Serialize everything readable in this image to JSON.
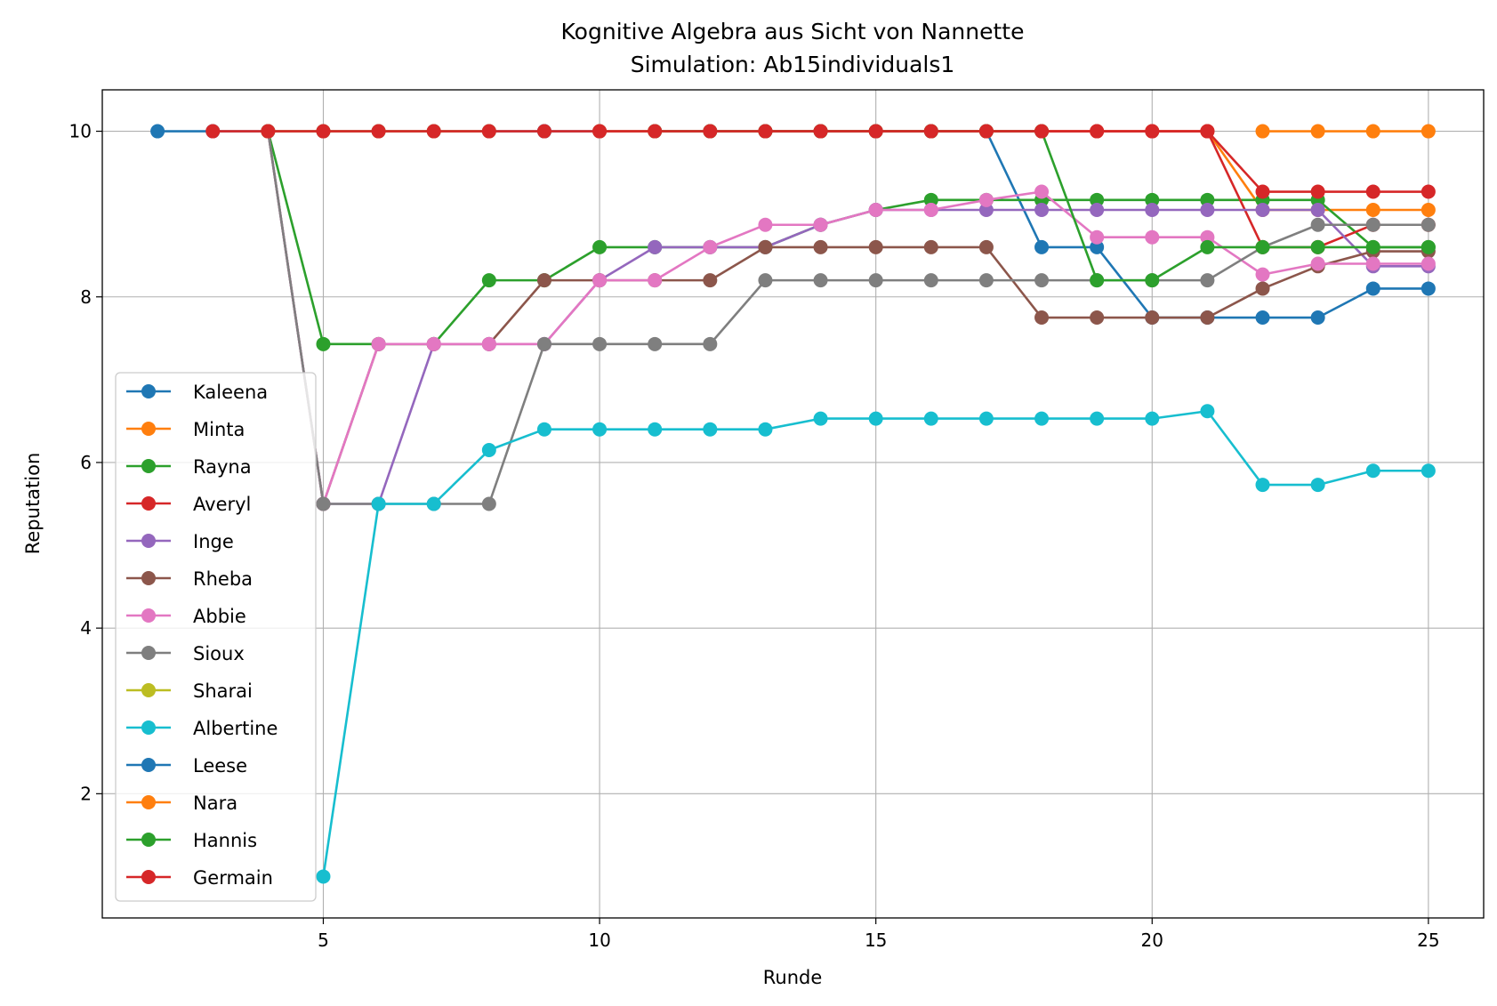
{
  "chart_data": {
    "type": "line",
    "title": "Kognitive Algebra aus Sicht von Nannette",
    "subtitle": "Simulation: Ab15individuals1",
    "xlabel": "Runde",
    "ylabel": "Reputation",
    "xlim": [
      1,
      26
    ],
    "ylim": [
      0.5,
      10.5
    ],
    "xticks": [
      5,
      10,
      15,
      20,
      25
    ],
    "yticks": [
      2,
      4,
      6,
      8,
      10
    ],
    "grid": true,
    "legend_position": "lower-left",
    "series": [
      {
        "name": "Kaleena",
        "color": "#1f77b4",
        "x": [
          2,
          3,
          4,
          5,
          6,
          7,
          8,
          9,
          10,
          11,
          12,
          13,
          14,
          15,
          16,
          17,
          18,
          19,
          20,
          21,
          22,
          23,
          24,
          25
        ],
        "y": [
          10,
          10,
          10,
          10,
          10,
          10,
          10,
          10,
          10,
          10,
          10,
          10,
          10,
          10,
          10,
          10,
          8.6,
          8.6,
          7.75,
          7.75,
          7.75,
          7.75,
          8.1,
          8.1
        ]
      },
      {
        "name": "Minta",
        "color": "#ff7f0e",
        "x": [
          10,
          11,
          12,
          13,
          14,
          15,
          16,
          17,
          18,
          19,
          20,
          21,
          22,
          23,
          24,
          25
        ],
        "y": [
          10,
          10,
          10,
          10,
          10,
          10,
          10,
          10,
          10,
          10,
          10,
          10,
          9.05,
          9.05,
          9.05,
          9.05
        ]
      },
      {
        "name": "Rayna",
        "color": "#2ca02c",
        "x": [
          4,
          5,
          6,
          7,
          8,
          9,
          10,
          11,
          12,
          13,
          14,
          15,
          16,
          17,
          18,
          19,
          20,
          21,
          22,
          23,
          24,
          25
        ],
        "y": [
          10,
          7.43,
          7.43,
          7.43,
          8.2,
          8.2,
          8.6,
          8.6,
          8.6,
          8.6,
          8.87,
          9.05,
          9.17,
          9.17,
          9.17,
          9.17,
          9.17,
          9.17,
          9.17,
          9.17,
          8.6,
          8.6
        ]
      },
      {
        "name": "Averyl",
        "color": "#d62728",
        "x": [
          13,
          14,
          15,
          16,
          17,
          18,
          19,
          20,
          21,
          22,
          23,
          24,
          25
        ],
        "y": [
          10,
          10,
          10,
          10,
          10,
          10,
          10,
          10,
          10,
          8.6,
          8.6,
          8.87,
          8.87
        ]
      },
      {
        "name": "Inge",
        "color": "#9467bd",
        "x": [
          4,
          5,
          6,
          7,
          8,
          9,
          10,
          11,
          12,
          13,
          14,
          15,
          16,
          17,
          18,
          19,
          20,
          21,
          22,
          23,
          24,
          25
        ],
        "y": [
          10,
          5.5,
          5.5,
          7.43,
          7.43,
          7.43,
          8.2,
          8.6,
          8.6,
          8.6,
          8.87,
          9.05,
          9.05,
          9.05,
          9.05,
          9.05,
          9.05,
          9.05,
          9.05,
          9.05,
          8.37,
          8.37
        ]
      },
      {
        "name": "Rheba",
        "color": "#8c564b",
        "x": [
          4,
          5,
          6,
          7,
          8,
          9,
          10,
          11,
          12,
          13,
          14,
          15,
          16,
          17,
          18,
          19,
          20,
          21,
          22,
          23,
          24,
          25
        ],
        "y": [
          10,
          5.5,
          7.43,
          7.43,
          7.43,
          8.2,
          8.2,
          8.2,
          8.2,
          8.6,
          8.6,
          8.6,
          8.6,
          8.6,
          7.75,
          7.75,
          7.75,
          7.75,
          8.1,
          8.37,
          8.55,
          8.55
        ]
      },
      {
        "name": "Abbie",
        "color": "#e377c2",
        "x": [
          4,
          5,
          6,
          7,
          8,
          9,
          10,
          11,
          12,
          13,
          14,
          15,
          16,
          17,
          18,
          19,
          20,
          21,
          22,
          23,
          24,
          25
        ],
        "y": [
          10,
          5.5,
          7.43,
          7.43,
          7.43,
          7.43,
          8.2,
          8.2,
          8.6,
          8.87,
          8.87,
          9.05,
          9.05,
          9.17,
          9.27,
          8.72,
          8.72,
          8.72,
          8.27,
          8.4,
          8.4,
          8.4
        ]
      },
      {
        "name": "Sioux",
        "color": "#7f7f7f",
        "x": [
          4,
          5,
          6,
          7,
          8,
          9,
          10,
          11,
          12,
          13,
          14,
          15,
          16,
          17,
          18,
          19,
          20,
          21,
          22,
          23,
          24,
          25
        ],
        "y": [
          10,
          5.5,
          5.5,
          5.5,
          5.5,
          7.43,
          7.43,
          7.43,
          7.43,
          8.2,
          8.2,
          8.2,
          8.2,
          8.2,
          8.2,
          8.2,
          8.2,
          8.2,
          8.6,
          8.87,
          8.87,
          8.87
        ]
      },
      {
        "name": "Sharai",
        "color": "#bcbd22",
        "x": [
          4,
          5,
          6,
          7,
          8
        ],
        "y": [
          10,
          10,
          10,
          10,
          10
        ]
      },
      {
        "name": "Albertine",
        "color": "#17becf",
        "x": [
          5,
          6,
          7,
          8,
          9,
          10,
          11,
          12,
          13,
          14,
          15,
          16,
          17,
          18,
          19,
          20,
          21,
          22,
          23,
          24,
          25
        ],
        "y": [
          1.0,
          5.5,
          5.5,
          6.15,
          6.4,
          6.4,
          6.4,
          6.4,
          6.4,
          6.53,
          6.53,
          6.53,
          6.53,
          6.53,
          6.53,
          6.53,
          6.62,
          5.73,
          5.73,
          5.9,
          5.9
        ]
      },
      {
        "name": "Leese",
        "color": "#1f77b4",
        "x": [
          9
        ],
        "y": [
          10
        ]
      },
      {
        "name": "Nara",
        "color": "#ff7f0e",
        "x": [
          22,
          23,
          24,
          25
        ],
        "y": [
          10,
          10,
          10,
          10
        ]
      },
      {
        "name": "Hannis",
        "color": "#2ca02c",
        "x": [
          11,
          12,
          13,
          14,
          15,
          16,
          17,
          18,
          19,
          20,
          21,
          22,
          23,
          24,
          25
        ],
        "y": [
          10,
          10,
          10,
          10,
          10,
          10,
          10,
          10,
          8.2,
          8.2,
          8.6,
          8.6,
          8.6,
          8.6,
          8.6
        ]
      },
      {
        "name": "Germain",
        "color": "#d62728",
        "x": [
          3,
          4,
          5,
          6,
          7,
          8,
          9,
          10,
          11,
          12,
          13,
          14,
          15,
          16,
          17,
          18,
          19,
          20,
          21,
          22,
          23,
          24,
          25
        ],
        "y": [
          10,
          10,
          10,
          10,
          10,
          10,
          10,
          10,
          10,
          10,
          10,
          10,
          10,
          10,
          10,
          10,
          10,
          10,
          10,
          9.27,
          9.27,
          9.27,
          9.27
        ]
      }
    ]
  }
}
